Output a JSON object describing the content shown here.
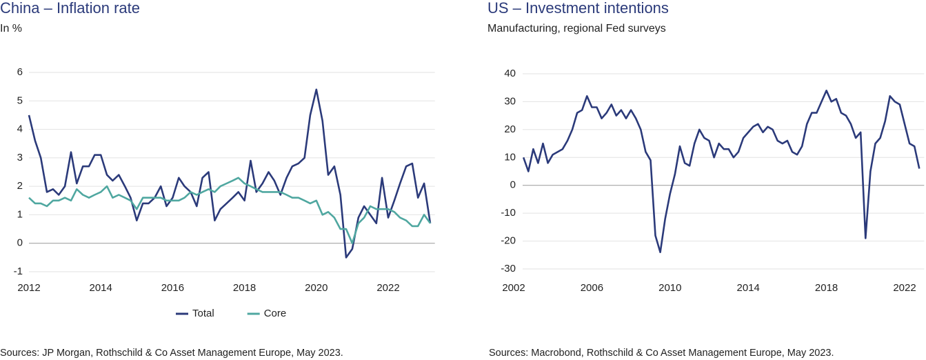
{
  "chart_data": [
    {
      "type": "line",
      "title": "China – Inflation rate",
      "subtitle": "In %",
      "x": [
        2012,
        2012.17,
        2012.33,
        2012.5,
        2012.67,
        2012.83,
        2013,
        2013.17,
        2013.33,
        2013.5,
        2013.67,
        2013.83,
        2014,
        2014.17,
        2014.33,
        2014.5,
        2014.67,
        2014.83,
        2015,
        2015.17,
        2015.33,
        2015.5,
        2015.67,
        2015.83,
        2016,
        2016.17,
        2016.33,
        2016.5,
        2016.67,
        2016.83,
        2017,
        2017.17,
        2017.33,
        2017.5,
        2017.67,
        2017.83,
        2018,
        2018.17,
        2018.33,
        2018.5,
        2018.67,
        2018.83,
        2019,
        2019.17,
        2019.33,
        2019.5,
        2019.67,
        2019.83,
        2020,
        2020.17,
        2020.33,
        2020.5,
        2020.67,
        2020.83,
        2021,
        2021.17,
        2021.33,
        2021.5,
        2021.67,
        2021.83,
        2022,
        2022.17,
        2022.33,
        2022.5,
        2022.67,
        2022.83,
        2023,
        2023.17
      ],
      "series": [
        {
          "name": "Total",
          "color": "#2b3a7a",
          "values": [
            4.5,
            3.6,
            3.0,
            1.8,
            1.9,
            1.7,
            2.0,
            3.2,
            2.1,
            2.7,
            2.7,
            3.1,
            3.1,
            2.4,
            2.2,
            2.4,
            2.0,
            1.6,
            0.8,
            1.4,
            1.4,
            1.6,
            2.0,
            1.3,
            1.6,
            2.3,
            2.0,
            1.8,
            1.3,
            2.3,
            2.5,
            0.8,
            1.2,
            1.4,
            1.6,
            1.8,
            1.5,
            2.9,
            1.8,
            2.1,
            2.5,
            2.2,
            1.7,
            2.3,
            2.7,
            2.8,
            3.0,
            4.5,
            5.4,
            4.3,
            2.4,
            2.7,
            1.7,
            -0.5,
            -0.2,
            0.9,
            1.3,
            1.0,
            0.7,
            2.3,
            0.9,
            1.5,
            2.1,
            2.7,
            2.8,
            1.6,
            2.1,
            0.7
          ]
        },
        {
          "name": "Core",
          "color": "#4fa7a0",
          "values": [
            1.6,
            1.4,
            1.4,
            1.3,
            1.5,
            1.5,
            1.6,
            1.5,
            1.9,
            1.7,
            1.6,
            1.7,
            1.8,
            2.0,
            1.6,
            1.7,
            1.6,
            1.5,
            1.2,
            1.6,
            1.6,
            1.6,
            1.6,
            1.5,
            1.5,
            1.5,
            1.6,
            1.8,
            1.7,
            1.8,
            1.9,
            1.8,
            2.0,
            2.1,
            2.2,
            2.3,
            2.1,
            2.0,
            1.9,
            1.8,
            1.8,
            1.8,
            1.8,
            1.7,
            1.6,
            1.6,
            1.5,
            1.4,
            1.5,
            1.0,
            1.1,
            0.9,
            0.5,
            0.5,
            0.0,
            0.7,
            0.9,
            1.3,
            1.2,
            1.2,
            1.2,
            1.1,
            0.9,
            0.8,
            0.6,
            0.6,
            1.0,
            0.7
          ]
        }
      ],
      "xlim": [
        2012,
        2023.3
      ],
      "xticks": [
        2012,
        2014,
        2016,
        2018,
        2020,
        2022
      ],
      "ylim": [
        -1,
        6
      ],
      "yticks": [
        -1,
        0,
        1,
        2,
        3,
        4,
        5,
        6
      ],
      "grid": true,
      "source": "Sources: JP Morgan, Rothschild & Co Asset Management Europe, May 2023."
    },
    {
      "type": "line",
      "title": "US – Investment intentions",
      "subtitle": "Manufacturing, regional Fed surveys",
      "x": [
        2002.5,
        2002.75,
        2003,
        2003.25,
        2003.5,
        2003.75,
        2004,
        2004.25,
        2004.5,
        2004.75,
        2005,
        2005.25,
        2005.5,
        2005.75,
        2006,
        2006.25,
        2006.5,
        2006.75,
        2007,
        2007.25,
        2007.5,
        2007.75,
        2008,
        2008.25,
        2008.5,
        2008.75,
        2009,
        2009.25,
        2009.5,
        2009.75,
        2010,
        2010.25,
        2010.5,
        2010.75,
        2011,
        2011.25,
        2011.5,
        2011.75,
        2012,
        2012.25,
        2012.5,
        2012.75,
        2013,
        2013.25,
        2013.5,
        2013.75,
        2014,
        2014.25,
        2014.5,
        2014.75,
        2015,
        2015.25,
        2015.5,
        2015.75,
        2016,
        2016.25,
        2016.5,
        2016.75,
        2017,
        2017.25,
        2017.5,
        2017.75,
        2018,
        2018.25,
        2018.5,
        2018.75,
        2019,
        2019.25,
        2019.5,
        2019.75,
        2020,
        2020.25,
        2020.5,
        2020.75,
        2021,
        2021.25,
        2021.5,
        2021.75,
        2022,
        2022.25,
        2022.5,
        2022.75
      ],
      "series": [
        {
          "color": "#2b3a7a",
          "values": [
            10,
            5,
            13,
            8,
            15,
            8,
            11,
            12,
            13,
            16,
            20,
            26,
            27,
            32,
            28,
            28,
            24,
            26,
            29,
            25,
            27,
            24,
            27,
            24,
            20,
            12,
            9,
            -18,
            -24,
            -12,
            -3,
            4,
            14,
            8,
            7,
            15,
            20,
            17,
            16,
            10,
            15,
            13,
            13,
            10,
            12,
            17,
            19,
            21,
            22,
            19,
            21,
            20,
            16,
            15,
            16,
            12,
            11,
            14,
            22,
            26,
            26,
            30,
            34,
            30,
            31,
            26,
            25,
            22,
            17,
            19,
            -19,
            5,
            15,
            17,
            23,
            32,
            30,
            29,
            22,
            15,
            14,
            6
          ]
        }
      ],
      "xlim": [
        2002,
        2023
      ],
      "xticks": [
        2002,
        2006,
        2010,
        2014,
        2018,
        2022
      ],
      "ylim": [
        -30,
        40
      ],
      "yticks": [
        -30,
        -20,
        -10,
        0,
        10,
        20,
        30,
        40
      ],
      "grid": true,
      "source": "Sources: Macrobond, Rothschild & Co Asset Management  Europe, May 2023."
    }
  ]
}
